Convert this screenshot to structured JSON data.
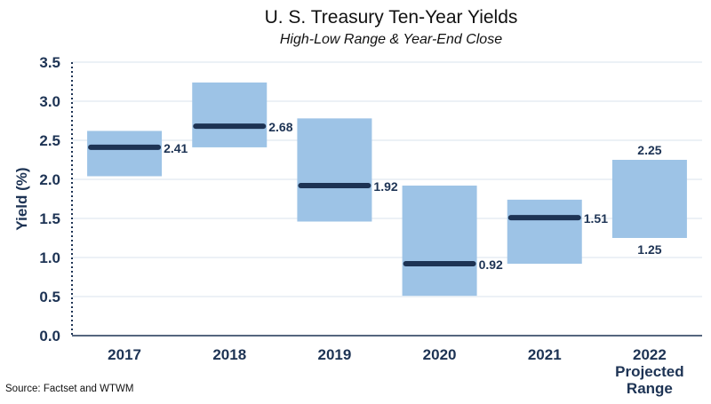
{
  "chart_data": {
    "type": "range-bar",
    "title": "U. S. Treasury Ten-Year Yields",
    "subtitle": "High-Low Range & Year-End Close",
    "ylabel": "Yield (%)",
    "xlabel": "",
    "ylim": [
      0,
      3.5
    ],
    "yticks": [
      "0.0",
      "0.5",
      "1.0",
      "1.5",
      "2.0",
      "2.5",
      "3.0",
      "3.5"
    ],
    "categories": [
      {
        "label": "2017",
        "label_lines": [
          "2017"
        ],
        "low": 2.04,
        "high": 2.62,
        "close": 2.41,
        "close_label": "2.41"
      },
      {
        "label": "2018",
        "label_lines": [
          "2018"
        ],
        "low": 2.41,
        "high": 3.24,
        "close": 2.68,
        "close_label": "2.68"
      },
      {
        "label": "2019",
        "label_lines": [
          "2019"
        ],
        "low": 1.46,
        "high": 2.78,
        "close": 1.92,
        "close_label": "1.92"
      },
      {
        "label": "2020",
        "label_lines": [
          "2020"
        ],
        "low": 0.51,
        "high": 1.92,
        "close": 0.92,
        "close_label": "0.92"
      },
      {
        "label": "2021",
        "label_lines": [
          "2021"
        ],
        "low": 0.92,
        "high": 1.74,
        "close": 1.51,
        "close_label": "1.51"
      },
      {
        "label": "2022 Projected Range",
        "label_lines": [
          "2022",
          "Projected",
          "Range"
        ],
        "low": 1.25,
        "high": 2.25,
        "close": null,
        "high_label": "2.25",
        "low_label": "1.25"
      }
    ],
    "gridlines": true,
    "colors": {
      "range": "#9dc3e6",
      "close": "#1d3354",
      "text": "#1d3354",
      "grid": "#d9e3ee"
    }
  },
  "source": "Source: Factset and WTWM"
}
